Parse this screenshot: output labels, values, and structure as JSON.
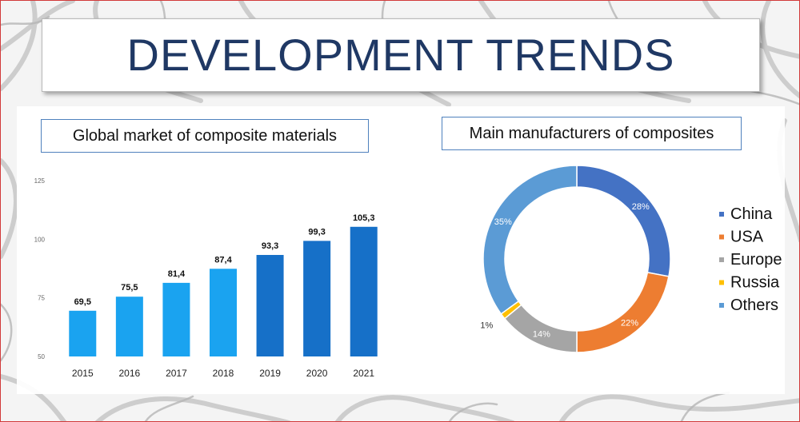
{
  "slide": {
    "title": "DEVELOPMENT TRENDS"
  },
  "bar_section": {
    "label": "Global market of composite materials"
  },
  "pie_section": {
    "label": "Main manufacturers of composites"
  },
  "colors": {
    "title_text": "#1f3864",
    "border_accent": "#4f81bd",
    "bar_light": "#1aa3f0",
    "bar_dark": "#1670c8",
    "china": "#4472c4",
    "usa": "#ed7d31",
    "europe": "#a5a5a5",
    "russia": "#ffc000",
    "others": "#5b9bd5"
  },
  "chart_data": [
    {
      "type": "bar",
      "title": "Global market of composite materials",
      "categories": [
        "2015",
        "2016",
        "2017",
        "2018",
        "2019",
        "2020",
        "2021"
      ],
      "values": [
        69.5,
        75.5,
        81.4,
        87.4,
        93.3,
        99.3,
        105.3
      ],
      "value_labels": [
        "69,5",
        "75,5",
        "81,4",
        "87,4",
        "93,3",
        "99,3",
        "105,3"
      ],
      "bar_colors": [
        "light",
        "light",
        "light",
        "light",
        "dark",
        "dark",
        "dark"
      ],
      "ylim": [
        50,
        125
      ],
      "yticks": [
        50,
        75,
        100,
        125
      ],
      "xlabel": "",
      "ylabel": "",
      "grid": false
    },
    {
      "type": "pie",
      "style": "donut",
      "title": "Main manufacturers of composites",
      "slices": [
        {
          "name": "China",
          "value": 28,
          "label": "28%",
          "color": "#4472c4"
        },
        {
          "name": "USA",
          "value": 22,
          "label": "22%",
          "color": "#ed7d31"
        },
        {
          "name": "Europe",
          "value": 14,
          "label": "14%",
          "color": "#a5a5a5"
        },
        {
          "name": "Russia",
          "value": 1,
          "label": "1%",
          "color": "#ffc000"
        },
        {
          "name": "Others",
          "value": 35,
          "label": "35%",
          "color": "#5b9bd5"
        }
      ],
      "legend_placement": "right"
    }
  ]
}
